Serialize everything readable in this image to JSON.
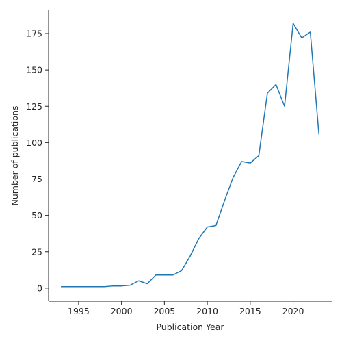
{
  "chart_data": {
    "type": "line",
    "title": "",
    "xlabel": "Publication Year",
    "ylabel": "Number of publications",
    "xlim": [
      1991.5,
      2024.5
    ],
    "ylim": [
      -9,
      191
    ],
    "xticks": [
      1995,
      2000,
      2005,
      2010,
      2015,
      2020
    ],
    "yticks": [
      0,
      25,
      50,
      75,
      100,
      125,
      150,
      175
    ],
    "grid": false,
    "legend": "none",
    "series": [
      {
        "color": "#1f77b4",
        "x": [
          1993,
          1994,
          1995,
          1996,
          1997,
          1998,
          1999,
          2000,
          2001,
          2002,
          2003,
          2004,
          2005,
          2006,
          2007,
          2008,
          2009,
          2010,
          2011,
          2012,
          2013,
          2014,
          2015,
          2016,
          2017,
          2018,
          2019,
          2020,
          2021,
          2022,
          2023
        ],
        "y": [
          1,
          1,
          1,
          1,
          1,
          1,
          1.5,
          1.5,
          2,
          5,
          3,
          9,
          9,
          9,
          12,
          22,
          34,
          42,
          43,
          60,
          76,
          87,
          86,
          91,
          134,
          140,
          125,
          182,
          172,
          176,
          106
        ]
      }
    ]
  }
}
